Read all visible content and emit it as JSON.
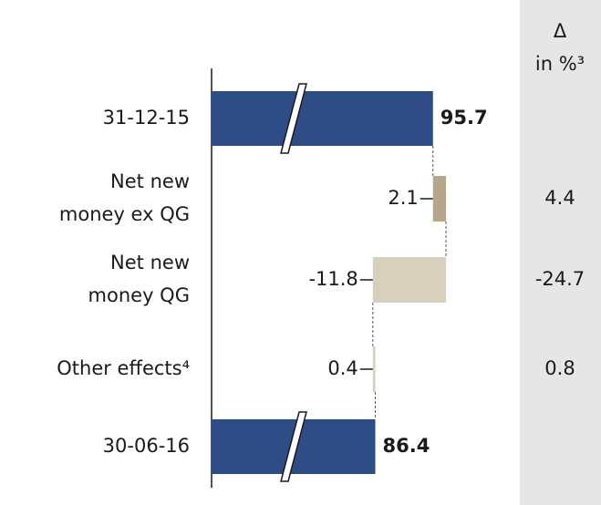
{
  "chart_data": {
    "type": "waterfall",
    "categories": [
      "31-12-15",
      "Net new money ex QG",
      "Net new money QG",
      "Other effects⁴",
      "30-06-16"
    ],
    "values": [
      95.7,
      2.1,
      -11.8,
      0.4,
      86.4
    ],
    "measure": [
      "absolute",
      "relative",
      "relative",
      "relative",
      "absolute"
    ],
    "colors": [
      "#2e4d87",
      "#b6a78a",
      "#d8cfbd",
      "#d8cfbd",
      "#2e4d87"
    ],
    "xlim": [
      60,
      100
    ],
    "axis_break": true,
    "delta_header": "Δ in %³",
    "delta_values": [
      null,
      4.4,
      -24.7,
      0.8,
      null
    ]
  }
}
